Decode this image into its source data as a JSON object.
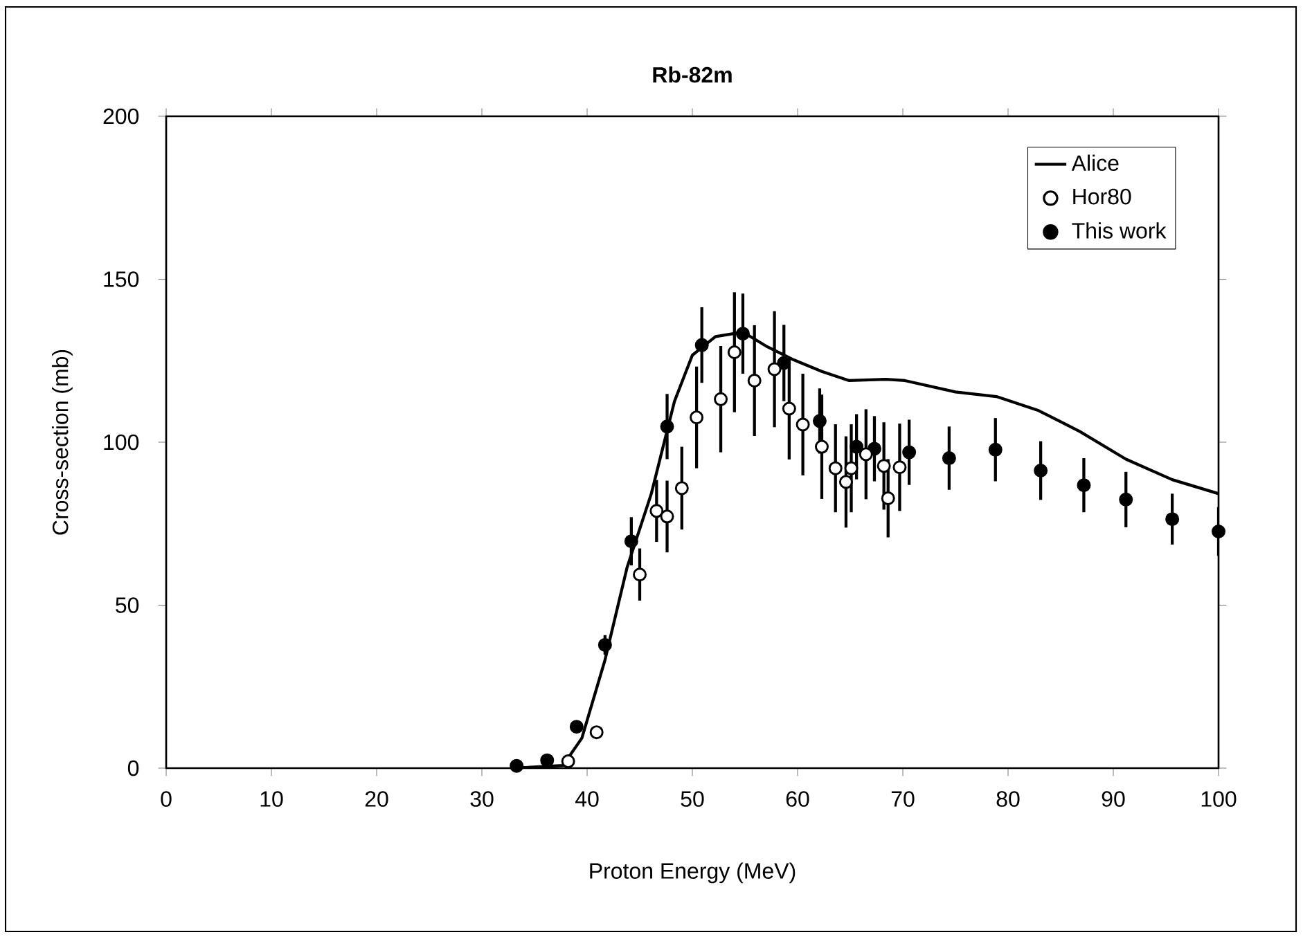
{
  "chart_data": {
    "type": "scatter",
    "title": "Rb-82m",
    "xlabel": "Proton Energy (MeV)",
    "ylabel": "Cross-section (mb)",
    "xlim": [
      0,
      100
    ],
    "ylim": [
      0,
      200
    ],
    "xticks": [
      0,
      10,
      20,
      30,
      40,
      50,
      60,
      70,
      80,
      90,
      100
    ],
    "yticks": [
      0,
      50,
      100,
      150,
      200
    ],
    "grid": false,
    "legend": "top right",
    "series": [
      {
        "name": "Alice",
        "type": "line",
        "color": "#000000",
        "marker": "none",
        "line_style": "solid",
        "x": [
          33,
          37.7,
          39.5,
          41.7,
          43.8,
          46.1,
          48.3,
          50,
          52.2,
          54.8,
          57,
          59.6,
          62.3,
          64.9,
          68.4,
          70.2,
          75,
          78.9,
          82.9,
          86.8,
          91.2,
          95.6,
          100
        ],
        "values": [
          0,
          0.8,
          9.2,
          33.2,
          61.6,
          84.2,
          112.5,
          126.7,
          132.4,
          133.8,
          129.5,
          125.3,
          121.7,
          118.9,
          119.3,
          118.9,
          115.4,
          114,
          109.7,
          103.3,
          94.8,
          88.5,
          84.2
        ]
      },
      {
        "name": "Hor80",
        "color": "#ffffff",
        "marker": "circle",
        "x": [
          38.2,
          40.9,
          45.0,
          46.6,
          47.6,
          49.0,
          50.4,
          52.7,
          54.0,
          55.9,
          57.8,
          59.2,
          60.5,
          62.3,
          63.6,
          65.1,
          64.6,
          66.5,
          68.2,
          68.6,
          69.7
        ],
        "values": [
          2.1,
          11.0,
          59.4,
          78.9,
          77.2,
          85.9,
          107.6,
          113.2,
          127.6,
          118.9,
          122.4,
          110.3,
          105.4,
          98.6,
          92,
          92,
          87.8,
          96.3,
          92.7,
          82.8,
          92.3
        ],
        "errors": [
          null,
          null,
          8,
          9.5,
          11,
          12.7,
          15.6,
          16.3,
          18.4,
          17,
          17.8,
          15.6,
          15.6,
          16,
          13.5,
          13.5,
          14,
          13.8,
          13.4,
          12,
          13.4
        ]
      },
      {
        "name": "This work",
        "color": "#000000",
        "marker": "circle",
        "x": [
          33.3,
          36.2,
          39.0,
          41.7,
          44.2,
          47.6,
          50.9,
          54.8,
          58.7,
          62.1,
          65.6,
          67.3,
          70.6,
          74.4,
          78.8,
          83.1,
          87.2,
          91.2,
          95.6,
          100
        ],
        "values": [
          0.7,
          2.4,
          12.7,
          37.8,
          69.6,
          104.8,
          129.8,
          133.3,
          124.3,
          106.5,
          98.6,
          98,
          96.9,
          95.1,
          97.7,
          91.3,
          86.8,
          82.4,
          76.4,
          72.6
        ],
        "errors": [
          null,
          null,
          null,
          3,
          7.4,
          10,
          11.6,
          12.3,
          11.7,
          10,
          10,
          10,
          10,
          9.7,
          9.7,
          9,
          8.3,
          8.5,
          7.8,
          7.5
        ]
      }
    ]
  }
}
